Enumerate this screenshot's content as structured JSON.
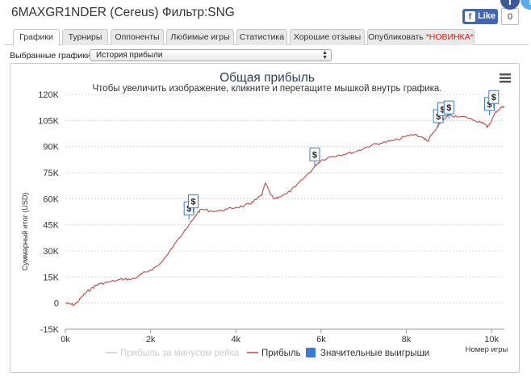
{
  "header": {
    "title": "6MAXGR1NDER (Cereus) Фильтр:SNG",
    "like_label": "Like",
    "like_count": "0"
  },
  "tabs": [
    {
      "label": "Графики",
      "active": true
    },
    {
      "label": "Турниры"
    },
    {
      "label": "Оппоненты"
    },
    {
      "label": "Любимые игры"
    },
    {
      "label": "Статистика"
    },
    {
      "label": "Хорошие отзывы"
    },
    {
      "label": "Опубликовать",
      "badge": "*НОВИНКА*"
    }
  ],
  "selector": {
    "label": "Выбранные графики:",
    "value": "История прибыли"
  },
  "chart_data": {
    "type": "line",
    "title": "Общая прибыль",
    "subtitle": "Чтобы увеличить изображение, кликните и перетащите мышкой внутрь графика.",
    "xlabel": "Номер игры",
    "ylabel": "Суммарный итог (USD)",
    "xlim": [
      0,
      10300
    ],
    "ylim": [
      -15000,
      120000
    ],
    "x_ticks": [
      0,
      2000,
      4000,
      6000,
      8000,
      10000
    ],
    "x_tick_labels": [
      "0k",
      "2k",
      "4k",
      "6k",
      "8k",
      "10k"
    ],
    "y_ticks": [
      -15000,
      0,
      15000,
      30000,
      45000,
      60000,
      75000,
      90000,
      105000,
      120000
    ],
    "y_tick_labels": [
      "-15K",
      "0",
      "15K",
      "30K",
      "45K",
      "60K",
      "75K",
      "90K",
      "105K",
      "120K"
    ],
    "grid": true,
    "legend_position": "bottom",
    "colors": {
      "profit": "#b94a4a",
      "without_rake": "#cccccc",
      "markers": "#3a7bd5"
    },
    "series": [
      {
        "name": "Прибыль за минусом рейка",
        "values": []
      },
      {
        "name": "Прибыль",
        "x": [
          0,
          100,
          200,
          300,
          400,
          500,
          600,
          700,
          800,
          1000,
          1200,
          1400,
          1500,
          1700,
          1800,
          2000,
          2200,
          2400,
          2600,
          2800,
          2900,
          3000,
          3100,
          3200,
          3400,
          3600,
          3800,
          4000,
          4200,
          4300,
          4400,
          4500,
          4600,
          4700,
          4800,
          4900,
          5000,
          5200,
          5400,
          5600,
          5800,
          5900,
          6000,
          6200,
          6400,
          6600,
          6800,
          7000,
          7200,
          7400,
          7600,
          7800,
          8000,
          8200,
          8400,
          8500,
          8600,
          8700,
          8800,
          8900,
          9000,
          9200,
          9400,
          9600,
          9800,
          9900,
          10000,
          10100,
          10200,
          10300
        ],
        "values": [
          0,
          -500,
          -1000,
          1000,
          4000,
          6500,
          8000,
          10000,
          11000,
          12000,
          13000,
          14000,
          13500,
          15000,
          17000,
          19000,
          22000,
          28000,
          35000,
          42000,
          45000,
          48000,
          52000,
          54000,
          53000,
          53000,
          54000,
          55000,
          56000,
          57000,
          58000,
          60000,
          62000,
          69000,
          63000,
          60000,
          61000,
          63000,
          67000,
          72000,
          77000,
          80000,
          82000,
          84000,
          85000,
          86000,
          87000,
          89000,
          91000,
          92000,
          93000,
          94000,
          96000,
          97000,
          95000,
          93000,
          97000,
          100000,
          104000,
          106000,
          108000,
          107000,
          107000,
          105000,
          104000,
          101000,
          105000,
          110000,
          112000,
          113000
        ]
      },
      {
        "name": "Значительные выигрыши",
        "x": [
          2900,
          3000,
          5850,
          8750,
          8850,
          9000,
          9950,
          10050
        ],
        "values": [
          48000,
          52000,
          79000,
          101000,
          105000,
          106000,
          108000,
          112000
        ]
      }
    ],
    "marker_label": "$"
  }
}
